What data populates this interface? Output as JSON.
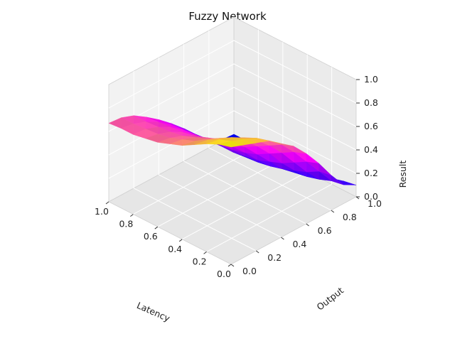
{
  "chart_data": {
    "type": "surface",
    "title": "Fuzzy Network",
    "xlabel": "Latency",
    "ylabel": "Output",
    "zlabel": "Result",
    "xlim": [
      0,
      1
    ],
    "ylim": [
      0,
      1
    ],
    "zlim": [
      0,
      1
    ],
    "x_ticks": [
      "0.0",
      "0.2",
      "0.4",
      "0.6",
      "0.8",
      "1.0"
    ],
    "y_ticks": [
      "0.0",
      "0.2",
      "0.4",
      "0.6",
      "0.8",
      "1.0"
    ],
    "z_ticks": [
      "0.0",
      "0.2",
      "0.4",
      "0.6",
      "0.8",
      "1.0"
    ],
    "grid": true,
    "colormap": "spring-to-blue (blue #0000ff at low, magenta #ff00ff at mid, yellow #ffff00 at high)",
    "colors": {
      "low": "#0000ff",
      "mid": "#ff00ff",
      "high": "#ffff00",
      "pane": "#f2f2f2",
      "grid": "#d9d9d9"
    },
    "x": [
      0.0,
      0.1,
      0.2,
      0.3,
      0.4,
      0.5,
      0.6,
      0.7,
      0.8,
      0.9,
      1.0
    ],
    "y": [
      0.0,
      0.1,
      0.2,
      0.3,
      0.4,
      0.5,
      0.6,
      0.7,
      0.8,
      0.9,
      1.0
    ],
    "z": [
      [
        1.0,
        0.96,
        0.92,
        0.88,
        0.8,
        0.72,
        0.6,
        0.46,
        0.3,
        0.16,
        0.1
      ],
      [
        0.97,
        0.94,
        0.9,
        0.85,
        0.77,
        0.68,
        0.56,
        0.42,
        0.28,
        0.14,
        0.08
      ],
      [
        0.92,
        0.9,
        0.86,
        0.8,
        0.72,
        0.62,
        0.5,
        0.36,
        0.22,
        0.1,
        0.05
      ],
      [
        0.86,
        0.84,
        0.8,
        0.74,
        0.66,
        0.56,
        0.44,
        0.3,
        0.18,
        0.07,
        0.03
      ],
      [
        0.8,
        0.78,
        0.74,
        0.68,
        0.6,
        0.5,
        0.38,
        0.26,
        0.14,
        0.05,
        0.02
      ],
      [
        0.76,
        0.74,
        0.7,
        0.64,
        0.55,
        0.45,
        0.34,
        0.22,
        0.11,
        0.04,
        0.01
      ],
      [
        0.72,
        0.7,
        0.66,
        0.6,
        0.52,
        0.42,
        0.31,
        0.2,
        0.09,
        0.03,
        0.0
      ],
      [
        0.7,
        0.68,
        0.64,
        0.58,
        0.5,
        0.4,
        0.3,
        0.18,
        0.08,
        0.02,
        0.0
      ],
      [
        0.68,
        0.67,
        0.63,
        0.57,
        0.49,
        0.39,
        0.29,
        0.18,
        0.08,
        0.02,
        0.0
      ],
      [
        0.68,
        0.66,
        0.62,
        0.56,
        0.48,
        0.38,
        0.28,
        0.17,
        0.07,
        0.01,
        0.0
      ],
      [
        0.67,
        0.66,
        0.62,
        0.55,
        0.47,
        0.38,
        0.28,
        0.17,
        0.07,
        0.01,
        0.0
      ]
    ]
  }
}
